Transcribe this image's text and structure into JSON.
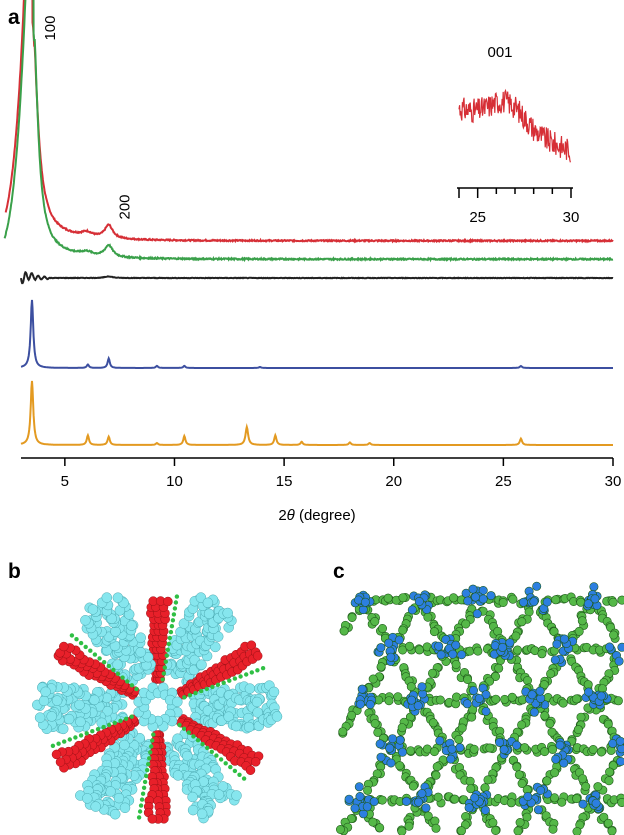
{
  "panels": {
    "a": "a",
    "b": "b",
    "c": "c"
  },
  "chart_data": {
    "type": "line",
    "xlabel_prefix": "2",
    "xlabel_symbol": "θ",
    "xlabel_suffix": " (degree)",
    "xlim": [
      3,
      30
    ],
    "x_ticks": [
      5,
      10,
      15,
      20,
      25,
      30
    ],
    "grid": false,
    "peak_labels": [
      {
        "text": "100",
        "x": 3.6
      },
      {
        "text": "200",
        "x": 7.0
      }
    ],
    "series": [
      {
        "color": "#d62f36",
        "offset": 0,
        "baseline": 0.06,
        "peaks": [
          [
            3.5,
            1.0,
            0.28
          ],
          [
            6.0,
            0.02,
            0.3
          ],
          [
            7.0,
            0.06,
            0.22
          ]
        ],
        "rise_start": 2.3
      },
      {
        "color": "#3aa04a",
        "offset": 0,
        "baseline": 0.025,
        "peaks": [
          [
            3.55,
            0.98,
            0.25
          ],
          [
            6.0,
            0.015,
            0.3
          ],
          [
            7.0,
            0.05,
            0.22
          ]
        ],
        "rise_start": 2.25
      },
      {
        "color": "#222222",
        "offset": 0,
        "baseline": 0.0,
        "noise": true,
        "peaks": [
          [
            3.4,
            0.03,
            0.15
          ],
          [
            7.0,
            0.02,
            0.2
          ]
        ]
      },
      {
        "color": "#3c4fa0",
        "offset": 0,
        "baseline": 0.0,
        "peaks": [
          [
            3.5,
            1.0,
            0.07
          ],
          [
            6.05,
            0.05,
            0.06
          ],
          [
            7.0,
            0.14,
            0.06
          ],
          [
            9.2,
            0.03,
            0.06
          ],
          [
            10.45,
            0.03,
            0.06
          ],
          [
            13.9,
            0.015,
            0.06
          ],
          [
            25.8,
            0.03,
            0.06
          ]
        ]
      },
      {
        "color": "#e39a21",
        "offset": 0,
        "baseline": 0.0,
        "peaks": [
          [
            3.5,
            1.0,
            0.07
          ],
          [
            6.05,
            0.15,
            0.06
          ],
          [
            7.0,
            0.13,
            0.06
          ],
          [
            9.2,
            0.03,
            0.06
          ],
          [
            10.45,
            0.14,
            0.06
          ],
          [
            13.3,
            0.28,
            0.07
          ],
          [
            14.6,
            0.15,
            0.06
          ],
          [
            15.8,
            0.05,
            0.06
          ],
          [
            18.0,
            0.04,
            0.06
          ],
          [
            18.9,
            0.03,
            0.06
          ],
          [
            25.8,
            0.1,
            0.06
          ]
        ]
      }
    ],
    "inset": {
      "label": "001",
      "xlim": [
        24,
        30
      ],
      "x_ticks": [
        25,
        30
      ],
      "color": "#d62f36"
    }
  },
  "structures": {
    "b": {
      "primary": "#86e6ee",
      "accent": "#e8202a",
      "edge": "#2fbf44"
    },
    "c": {
      "primary": "#55b848",
      "accent": "#2c7fe0"
    }
  }
}
